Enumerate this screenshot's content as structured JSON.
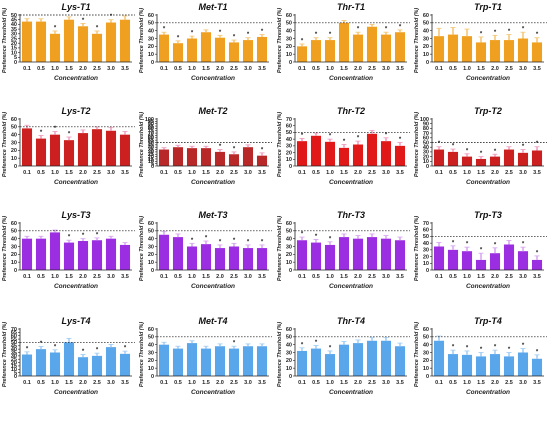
{
  "chart_data": [
    {
      "title": "Lys-T1",
      "type": "bar",
      "color": "#f0a020",
      "errcolor": "#f4c87a",
      "categories": [
        "0.1",
        "0.5",
        "1.0",
        "1.5",
        "2.0",
        "2.5",
        "3.0",
        "3.5"
      ],
      "values": [
        43,
        43,
        30,
        45,
        38,
        30,
        42,
        45
      ],
      "errors": [
        3,
        3,
        3,
        3,
        3,
        3,
        3,
        4
      ],
      "marks": [
        "",
        "",
        "*",
        "",
        "*",
        "*",
        "*",
        ""
      ],
      "threshold": 50,
      "ylim": [
        0,
        50
      ],
      "yticks": [
        0,
        5,
        10,
        15,
        20,
        25,
        30,
        35,
        40,
        45,
        50
      ],
      "xlabel": "Concentration",
      "ylabel": "Preference Threshold (%)"
    },
    {
      "title": "Met-T1",
      "type": "bar",
      "color": "#f0a020",
      "errcolor": "#f4c87a",
      "categories": [
        "0.1",
        "0.5",
        "1.0",
        "1.5",
        "2.0",
        "2.5",
        "3.0",
        "3.5"
      ],
      "values": [
        35,
        24,
        30,
        38,
        31,
        25,
        28,
        32
      ],
      "errors": [
        3,
        3,
        3,
        3,
        3,
        3,
        3,
        3
      ],
      "marks": [
        "*",
        "*",
        "*",
        "",
        "*",
        "*",
        "*",
        "*"
      ],
      "threshold": 50,
      "ylim": [
        0,
        60
      ],
      "yticks": [
        0,
        10,
        20,
        30,
        40,
        50,
        60
      ],
      "xlabel": "Concentration",
      "ylabel": "Preference Threshold (%)"
    },
    {
      "title": "Thr-T1",
      "type": "bar",
      "color": "#f0a020",
      "errcolor": "#f4c87a",
      "categories": [
        "0.1",
        "0.5",
        "1.0",
        "1.5",
        "2.0",
        "2.5",
        "3.0",
        "3.5"
      ],
      "values": [
        20,
        28,
        28,
        50,
        35,
        45,
        35,
        38
      ],
      "errors": [
        3,
        3,
        3,
        3,
        3,
        3,
        3,
        3
      ],
      "marks": [
        "*",
        "*",
        "*",
        "",
        "*",
        "",
        "*",
        "*"
      ],
      "threshold": 50,
      "ylim": [
        0,
        60
      ],
      "yticks": [
        0,
        10,
        20,
        30,
        40,
        50,
        60
      ],
      "xlabel": "Concentration",
      "ylabel": "Preference Threshold (%)"
    },
    {
      "title": "Trp-T1",
      "type": "bar",
      "color": "#f0a020",
      "errcolor": "#f4c87a",
      "categories": [
        "0.1",
        "0.5",
        "1.0",
        "1.5",
        "2.0",
        "2.5",
        "3.0",
        "3.5"
      ],
      "values": [
        33,
        35,
        33,
        25,
        28,
        28,
        30,
        25
      ],
      "errors": [
        10,
        9,
        9,
        7,
        6,
        7,
        8,
        6
      ],
      "marks": [
        "",
        "",
        "",
        "*",
        "*",
        "*",
        "*",
        "*"
      ],
      "threshold": 50,
      "ylim": [
        0,
        60
      ],
      "yticks": [
        0,
        10,
        20,
        30,
        40,
        50,
        60
      ],
      "xlabel": "Concentration",
      "ylabel": "Preference Threshold (%)"
    },
    {
      "title": "Lys-T2",
      "type": "bar",
      "color": "#cc2020",
      "errcolor": "#f0a0c0",
      "categories": [
        "0.1",
        "0.5",
        "1.0",
        "1.5",
        "2.0",
        "2.5",
        "3.0",
        "3.5"
      ],
      "values": [
        48,
        35,
        40,
        33,
        42,
        47,
        45,
        40
      ],
      "errors": [
        4,
        4,
        4,
        4,
        4,
        3,
        4,
        4
      ],
      "marks": [
        "",
        "*",
        "*",
        "*",
        "",
        "",
        "",
        ""
      ],
      "threshold": 50,
      "ylim": [
        0,
        60
      ],
      "yticks": [
        0,
        10,
        20,
        30,
        40,
        50,
        60
      ],
      "xlabel": "Concentration",
      "ylabel": "Preference Threshold (%)"
    },
    {
      "title": "Met-T2",
      "type": "bar",
      "color": "#b82828",
      "errcolor": "#f0a0c0",
      "categories": [
        "0.1",
        "0.5",
        "1.0",
        "1.5",
        "2.0",
        "2.5",
        "3.0",
        "3.5"
      ],
      "values": [
        35,
        40,
        38,
        38,
        30,
        25,
        40,
        22
      ],
      "errors": [
        4,
        4,
        4,
        4,
        5,
        5,
        5,
        6
      ],
      "marks": [
        "",
        "",
        "",
        "",
        "*",
        "*",
        "",
        "*"
      ],
      "threshold": 50,
      "ylim": [
        0,
        100
      ],
      "yticks": [
        0,
        5,
        10,
        15,
        20,
        25,
        30,
        35,
        40,
        45,
        50,
        55,
        60,
        65,
        70,
        75,
        80,
        85,
        90,
        95,
        100
      ],
      "xlabel": "Concentration",
      "ylabel": "Preference Threshold (%)"
    },
    {
      "title": "Thr-T2",
      "type": "bar",
      "color": "#e01818",
      "errcolor": "#f0a0c0",
      "categories": [
        "0.1",
        "0.5",
        "1.0",
        "1.5",
        "2.0",
        "2.5",
        "3.0",
        "3.5"
      ],
      "values": [
        37,
        45,
        36,
        27,
        32,
        48,
        37,
        30
      ],
      "errors": [
        4,
        4,
        4,
        5,
        5,
        5,
        5,
        5
      ],
      "marks": [
        "*",
        "",
        "*",
        "*",
        "*",
        "",
        "*",
        "*"
      ],
      "threshold": 50,
      "ylim": [
        0,
        70
      ],
      "yticks": [
        0,
        10,
        20,
        30,
        40,
        50,
        60,
        70
      ],
      "xlabel": "Concentration",
      "ylabel": "Preference Threshold (%)"
    },
    {
      "title": "Trp-T2",
      "type": "bar",
      "color": "#cc2020",
      "errcolor": "#f0a0c0",
      "categories": [
        "0.1",
        "0.5",
        "1.0",
        "1.5",
        "2.0",
        "2.5",
        "3.0",
        "3.5"
      ],
      "values": [
        35,
        30,
        20,
        15,
        20,
        35,
        28,
        33
      ],
      "errors": [
        6,
        6,
        6,
        5,
        5,
        6,
        7,
        8
      ],
      "marks": [
        "*",
        "*",
        "*",
        "*",
        "*",
        "",
        "*",
        "*"
      ],
      "threshold": 50,
      "ylim": [
        0,
        100
      ],
      "yticks": [
        0,
        10,
        20,
        30,
        40,
        50,
        60,
        70,
        80,
        90,
        100
      ],
      "xlabel": "Concentration",
      "ylabel": "Preference Threshold (%)"
    },
    {
      "title": "Lys-T3",
      "type": "bar",
      "color": "#9a2ee0",
      "errcolor": "#d9a8f0",
      "categories": [
        "0.1",
        "0.5",
        "1.0",
        "1.5",
        "2.0",
        "2.5",
        "3.0",
        "3.5"
      ],
      "values": [
        40,
        40,
        48,
        35,
        37,
        38,
        40,
        32
      ],
      "errors": [
        3,
        3,
        3,
        3,
        3,
        3,
        3,
        3
      ],
      "marks": [
        "",
        "",
        "",
        "*",
        "*",
        "*",
        "",
        ""
      ],
      "threshold": 50,
      "ylim": [
        0,
        60
      ],
      "yticks": [
        0,
        10,
        20,
        30,
        40,
        50,
        60
      ],
      "xlabel": "Concentration",
      "ylabel": "Preference Threshold (%)"
    },
    {
      "title": "Met-T3",
      "type": "bar",
      "color": "#9a2ee0",
      "errcolor": "#d9a8f0",
      "categories": [
        "0.1",
        "0.5",
        "1.0",
        "1.5",
        "2.0",
        "2.5",
        "3.0",
        "3.5"
      ],
      "values": [
        45,
        42,
        30,
        33,
        28,
        30,
        28,
        28
      ],
      "errors": [
        4,
        4,
        4,
        4,
        4,
        4,
        4,
        4
      ],
      "marks": [
        "",
        "",
        "*",
        "*",
        "*",
        "*",
        "*",
        "*"
      ],
      "threshold": 50,
      "ylim": [
        0,
        60
      ],
      "yticks": [
        0,
        10,
        20,
        30,
        40,
        50,
        60
      ],
      "xlabel": "Concentration",
      "ylabel": "Preference Threshold (%)"
    },
    {
      "title": "Thr-T3",
      "type": "bar",
      "color": "#9a2ee0",
      "errcolor": "#d9a8f0",
      "categories": [
        "0.1",
        "0.5",
        "1.0",
        "1.5",
        "2.0",
        "2.5",
        "3.0",
        "3.5"
      ],
      "values": [
        38,
        35,
        32,
        42,
        40,
        42,
        40,
        38
      ],
      "errors": [
        4,
        4,
        4,
        4,
        4,
        4,
        4,
        4
      ],
      "marks": [
        "*",
        "*",
        "*",
        "",
        "",
        "",
        "",
        ""
      ],
      "threshold": 50,
      "ylim": [
        0,
        60
      ],
      "yticks": [
        0,
        10,
        20,
        30,
        40,
        50,
        60
      ],
      "xlabel": "Concentration",
      "ylabel": "Preference Threshold (%)"
    },
    {
      "title": "Trp-T3",
      "type": "bar",
      "color": "#9a2ee0",
      "errcolor": "#d9a8f0",
      "categories": [
        "0.1",
        "0.5",
        "1.0",
        "1.5",
        "2.0",
        "2.5",
        "3.0",
        "3.5"
      ],
      "values": [
        35,
        30,
        28,
        15,
        25,
        38,
        28,
        15
      ],
      "errors": [
        6,
        6,
        6,
        10,
        8,
        6,
        6,
        6
      ],
      "marks": [
        "",
        "*",
        "*",
        "*",
        "*",
        "",
        "*",
        "*"
      ],
      "threshold": 50,
      "ylim": [
        0,
        70
      ],
      "yticks": [
        0,
        10,
        20,
        30,
        40,
        50,
        60,
        70
      ],
      "xlabel": "Concentration",
      "ylabel": "Preference Threshold (%)"
    },
    {
      "title": "Lys-T4",
      "type": "bar",
      "color": "#5aa6ea",
      "errcolor": "#a6cff4",
      "categories": [
        "0.1",
        "0.5",
        "1.0",
        "1.5",
        "2.0",
        "2.5",
        "3.0",
        "3.5"
      ],
      "values": [
        32,
        40,
        35,
        50,
        28,
        30,
        43,
        33
      ],
      "errors": [
        4,
        4,
        4,
        6,
        4,
        4,
        4,
        4
      ],
      "marks": [
        "*",
        "*",
        "*",
        "",
        "*",
        "*",
        "",
        "*"
      ],
      "threshold": 50,
      "ylim": [
        0,
        70
      ],
      "yticks": [
        0,
        5,
        10,
        15,
        20,
        25,
        30,
        35,
        40,
        45,
        50,
        55,
        60,
        65,
        70
      ],
      "xlabel": "Concentration",
      "ylabel": "Preference Threshold (%)"
    },
    {
      "title": "Met-T4",
      "type": "bar",
      "color": "#5aa6ea",
      "errcolor": "#a6cff4",
      "categories": [
        "0.1",
        "0.5",
        "1.0",
        "1.5",
        "2.0",
        "2.5",
        "3.0",
        "3.5"
      ],
      "values": [
        40,
        35,
        42,
        35,
        38,
        35,
        38,
        38
      ],
      "errors": [
        3,
        3,
        3,
        3,
        3,
        3,
        3,
        3
      ],
      "marks": [
        "",
        "",
        "",
        "",
        "",
        "*",
        "",
        ""
      ],
      "threshold": 50,
      "ylim": [
        0,
        60
      ],
      "yticks": [
        0,
        10,
        20,
        30,
        40,
        50,
        60
      ],
      "xlabel": "Concentration",
      "ylabel": "Preference Threshold (%)"
    },
    {
      "title": "Thr-T4",
      "type": "bar",
      "color": "#5aa6ea",
      "errcolor": "#a6cff4",
      "categories": [
        "0.1",
        "0.5",
        "1.0",
        "1.5",
        "2.0",
        "2.5",
        "3.0",
        "3.5"
      ],
      "values": [
        32,
        35,
        28,
        40,
        42,
        45,
        45,
        38
      ],
      "errors": [
        4,
        4,
        4,
        4,
        4,
        4,
        4,
        4
      ],
      "marks": [
        "*",
        "*",
        "*",
        "",
        "",
        "",
        "",
        ""
      ],
      "threshold": 50,
      "ylim": [
        0,
        60
      ],
      "yticks": [
        0,
        10,
        20,
        30,
        40,
        50,
        60
      ],
      "xlabel": "Concentration",
      "ylabel": "Preference Threshold (%)"
    },
    {
      "title": "Trp-T4",
      "type": "bar",
      "color": "#5aa6ea",
      "errcolor": "#a6cff4",
      "categories": [
        "0.1",
        "0.5",
        "1.0",
        "1.5",
        "2.0",
        "2.5",
        "3.0",
        "3.5"
      ],
      "values": [
        45,
        28,
        27,
        25,
        28,
        25,
        30,
        22
      ],
      "errors": [
        6,
        5,
        5,
        5,
        5,
        5,
        5,
        5
      ],
      "marks": [
        "",
        "*",
        "*",
        "*",
        "*",
        "*",
        "*",
        "*"
      ],
      "threshold": 50,
      "ylim": [
        0,
        60
      ],
      "yticks": [
        0,
        10,
        20,
        30,
        40,
        50,
        60
      ],
      "xlabel": "Concentration",
      "ylabel": "Preference Threshold (%)"
    }
  ]
}
